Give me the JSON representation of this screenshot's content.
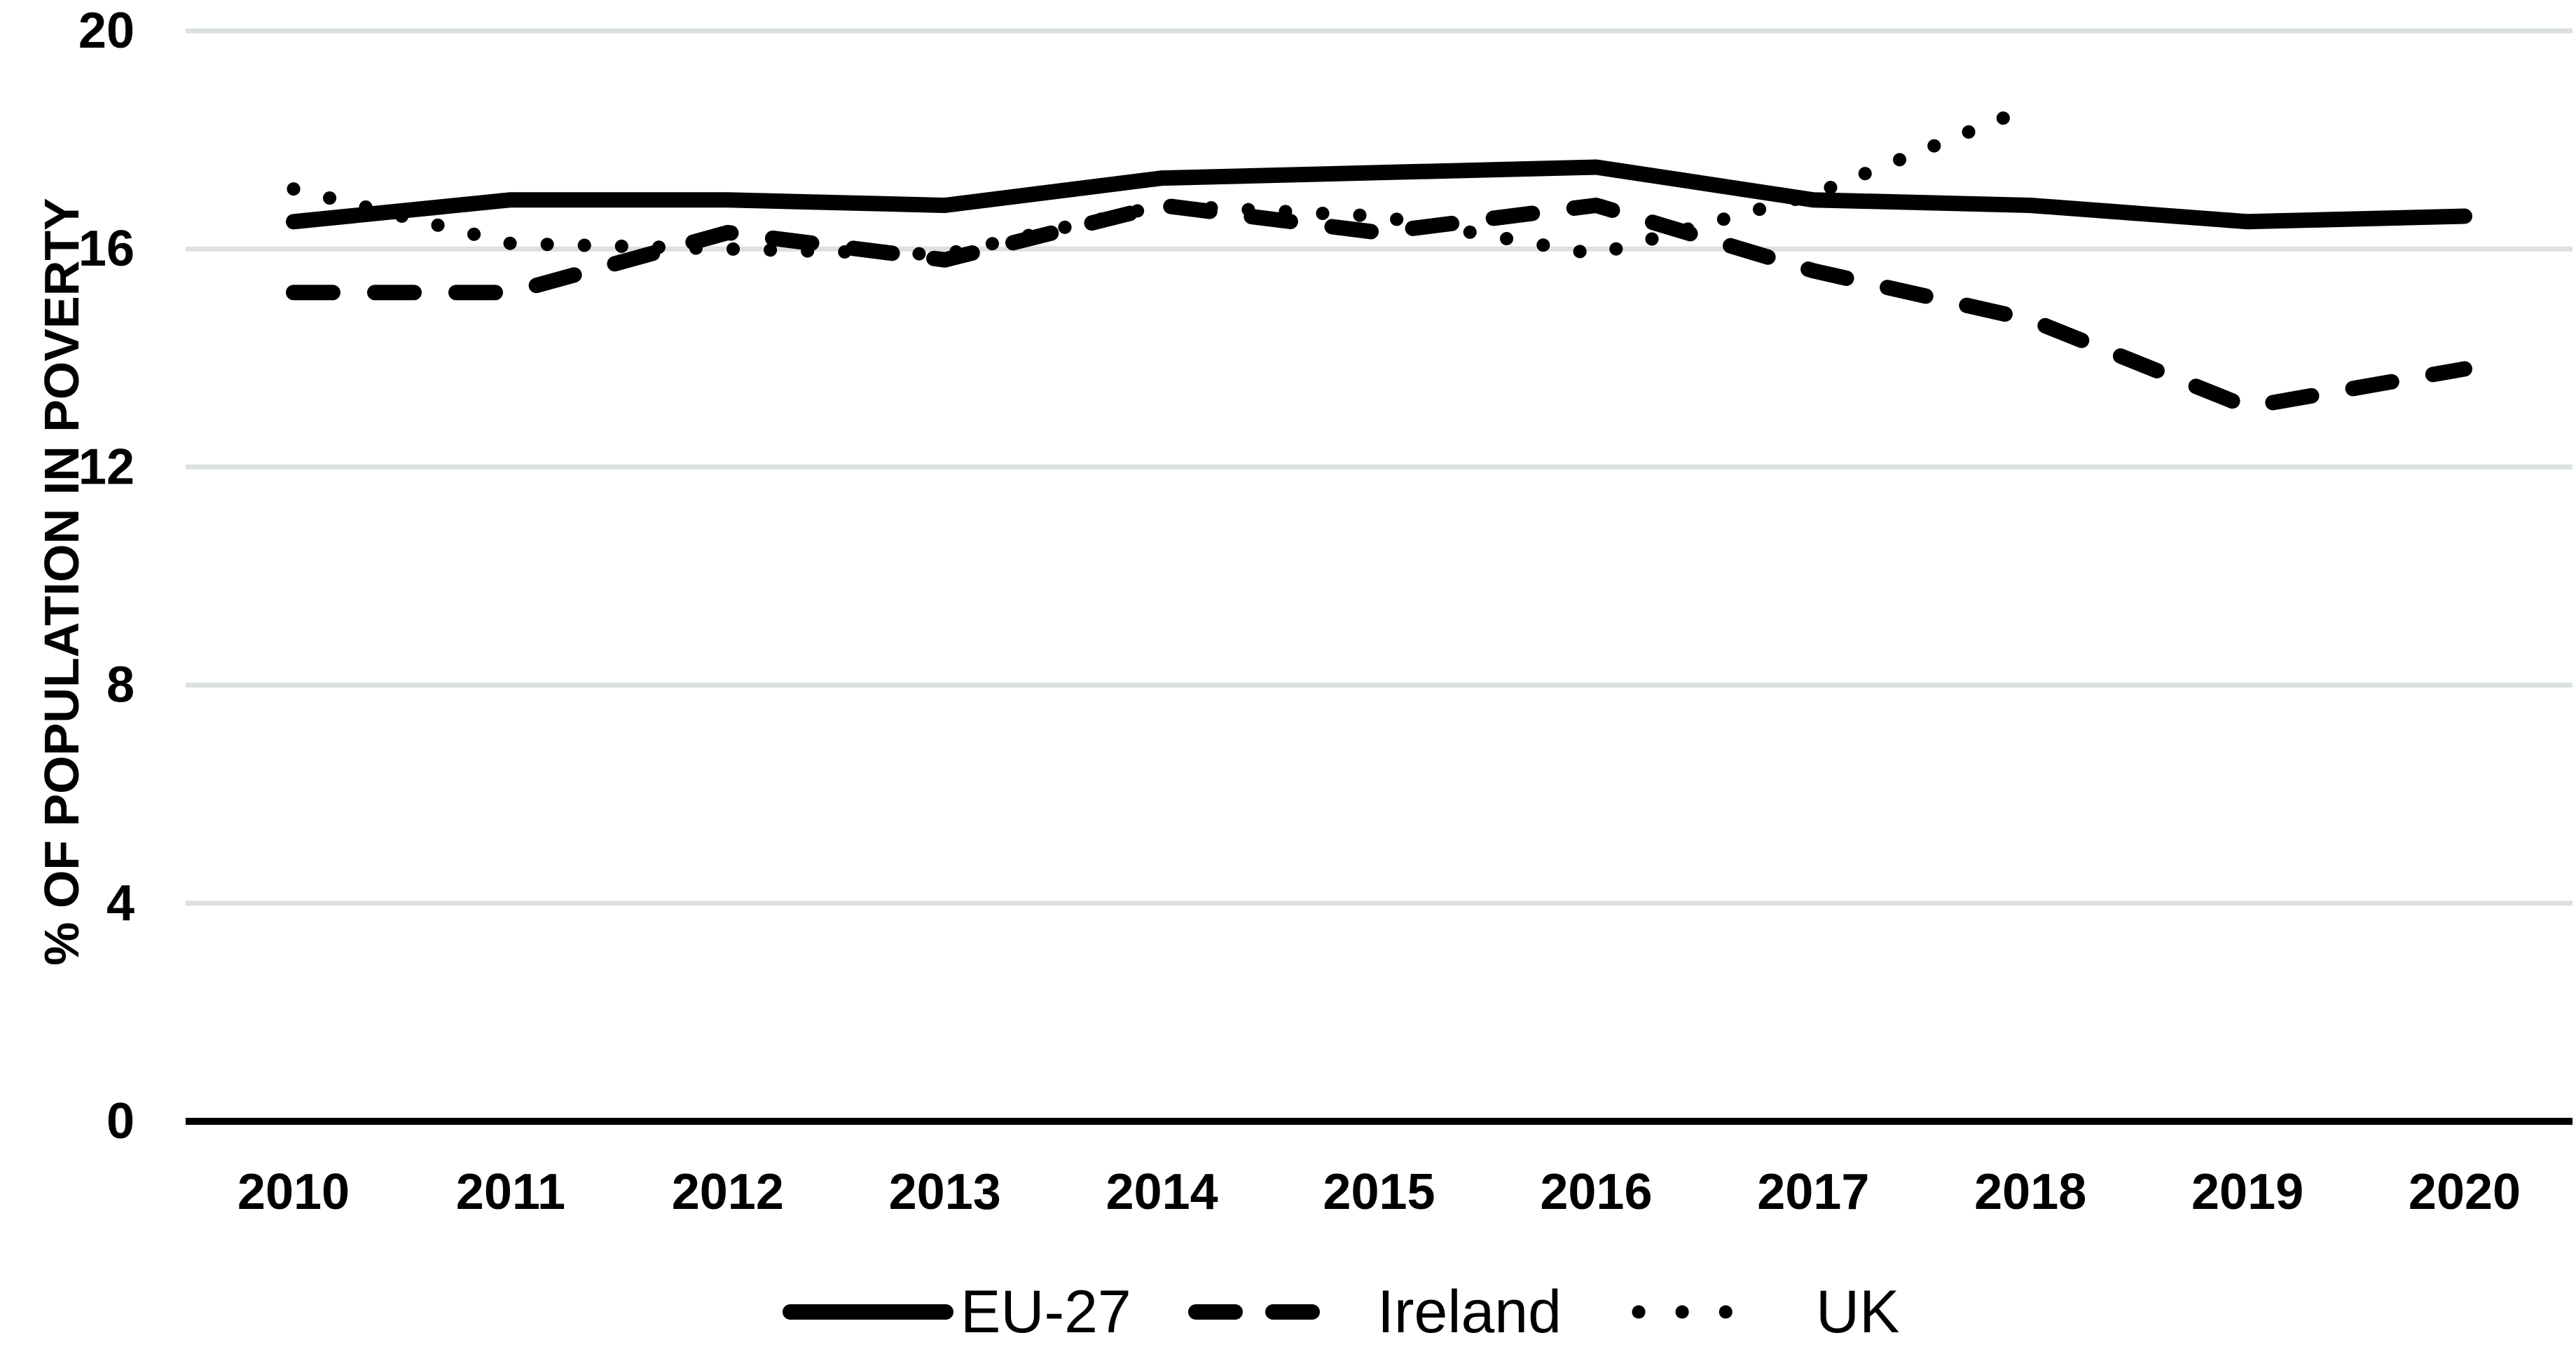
{
  "figure": {
    "background": "#ffffff",
    "description": "Line chart of percentage of population in poverty, 2010-2020, for EU-27, Ireland and UK"
  },
  "chart_data": {
    "type": "line",
    "title": "",
    "xlabel": "",
    "ylabel": "% OF POPULATION IN POVERTY",
    "years": [
      "2010",
      "2011",
      "2012",
      "2013",
      "2014",
      "2015",
      "2016",
      "2017",
      "2018",
      "2019",
      "2020"
    ],
    "yticks": [
      "0",
      "4",
      "8",
      "12",
      "16",
      "20"
    ],
    "ytick_values": [
      0,
      4,
      8,
      12,
      16,
      20
    ],
    "ylim": [
      0,
      20
    ],
    "grid": "horizontal-only",
    "legend_position": "bottom-center",
    "axis_color": "#000000",
    "gridline_color": "#dbe0e0",
    "series": [
      {
        "name": "EU-27",
        "style": "solid",
        "color": "#000000",
        "values": [
          16.5,
          16.9,
          16.9,
          16.8,
          17.3,
          17.4,
          17.5,
          16.9,
          16.8,
          16.5,
          16.6
        ]
      },
      {
        "name": "Ireland",
        "style": "dashed",
        "color": "#000000",
        "values": [
          15.2,
          15.2,
          16.3,
          15.8,
          16.8,
          16.3,
          16.8,
          15.6,
          14.7,
          13.1,
          13.8
        ]
      },
      {
        "name": "UK",
        "style": "dotted",
        "color": "#000000",
        "values": [
          17.1,
          16.1,
          16.0,
          15.9,
          16.8,
          16.6,
          15.9,
          17.0,
          18.6,
          null,
          null
        ]
      }
    ]
  }
}
